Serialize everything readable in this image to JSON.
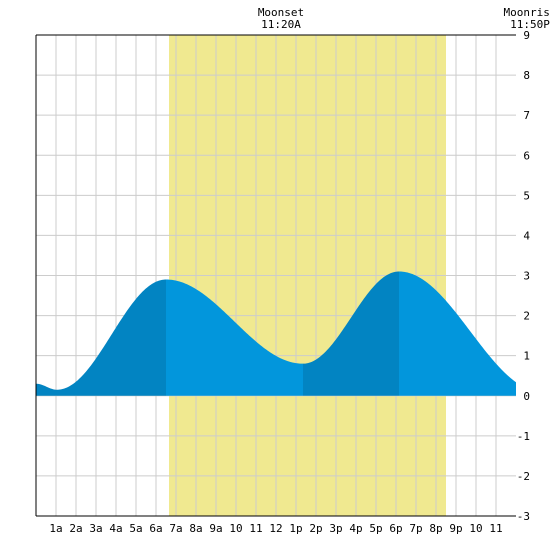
{
  "moon_events": [
    {
      "label": "Moonset",
      "time": "11:20A",
      "hour": 11.333
    },
    {
      "label": "Moonrise",
      "time": "11:50P",
      "hour": 23.833
    }
  ],
  "chart_data": {
    "type": "area",
    "title": "",
    "xlabel": "",
    "ylabel": "",
    "xlim": [
      0,
      24
    ],
    "ylim": [
      -3,
      9
    ],
    "grid": true,
    "yticks": [
      -3,
      -2,
      -1,
      0,
      1,
      2,
      3,
      4,
      5,
      6,
      7,
      8,
      9
    ],
    "xticks": [
      {
        "hour": 1,
        "label": "1a"
      },
      {
        "hour": 2,
        "label": "2a"
      },
      {
        "hour": 3,
        "label": "3a"
      },
      {
        "hour": 4,
        "label": "4a"
      },
      {
        "hour": 5,
        "label": "5a"
      },
      {
        "hour": 6,
        "label": "6a"
      },
      {
        "hour": 7,
        "label": "7a"
      },
      {
        "hour": 8,
        "label": "8a"
      },
      {
        "hour": 9,
        "label": "9a"
      },
      {
        "hour": 10,
        "label": "10"
      },
      {
        "hour": 11,
        "label": "11"
      },
      {
        "hour": 12,
        "label": "12"
      },
      {
        "hour": 13,
        "label": "1p"
      },
      {
        "hour": 14,
        "label": "2p"
      },
      {
        "hour": 15,
        "label": "3p"
      },
      {
        "hour": 16,
        "label": "4p"
      },
      {
        "hour": 17,
        "label": "5p"
      },
      {
        "hour": 18,
        "label": "6p"
      },
      {
        "hour": 19,
        "label": "7p"
      },
      {
        "hour": 20,
        "label": "8p"
      },
      {
        "hour": 21,
        "label": "9p"
      },
      {
        "hour": 22,
        "label": "10"
      },
      {
        "hour": 23,
        "label": "11"
      }
    ],
    "daylight": {
      "start_hour": 6.65,
      "end_hour": 20.5
    },
    "extremes": [
      {
        "type": "low",
        "hour": 1.05,
        "value": 0.15
      },
      {
        "type": "high",
        "hour": 6.5,
        "value": 2.9
      },
      {
        "type": "low",
        "hour": 13.35,
        "value": 0.8
      },
      {
        "type": "high",
        "hour": 18.15,
        "value": 3.1
      },
      {
        "type": "low",
        "hour": 25.3,
        "value": 0.1
      }
    ],
    "start_value": 0.3,
    "shade_segments": [
      {
        "from": 0,
        "to": 6.5,
        "shade": "rising"
      },
      {
        "from": 6.5,
        "to": 13.35,
        "shade": "falling"
      },
      {
        "from": 13.35,
        "to": 18.15,
        "shade": "rising"
      },
      {
        "from": 18.15,
        "to": 24,
        "shade": "falling"
      }
    ],
    "colors": {
      "daylight": "#f0e990",
      "rising": "#0284c2",
      "falling": "#0296dc",
      "grid": "#cccccc",
      "frame": "#000000"
    }
  }
}
